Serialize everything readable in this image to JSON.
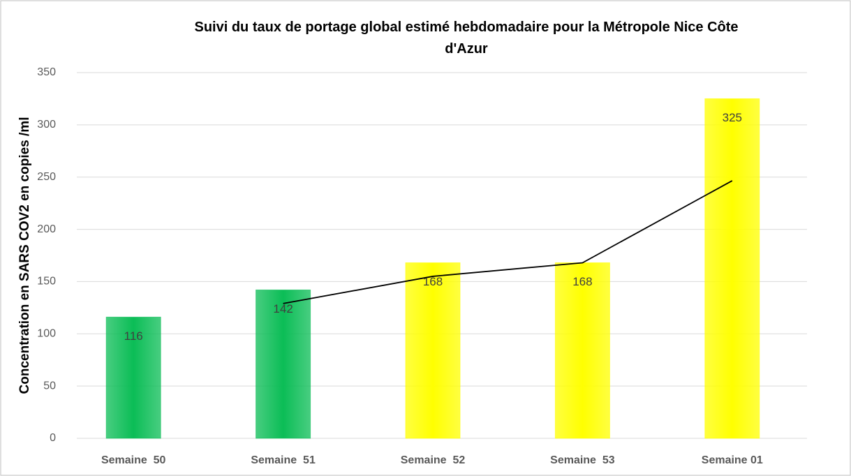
{
  "chart_data": {
    "type": "bar",
    "title": "Suivi du taux de portage global estimé hebdomadaire pour la Métropole Nice Côte d'Azur",
    "y_label": "Concentration en SARS COV2 en copies /ml",
    "categories": [
      "Semaine  50",
      "Semaine  51",
      "Semaine  52",
      "Semaine  53",
      "Semaine 01"
    ],
    "values": [
      116,
      142,
      168,
      168,
      325
    ],
    "colors": [
      "#0bbd56",
      "#0bbd56",
      "#ffff00",
      "#ffff00",
      "#ffff00"
    ],
    "trend": {
      "color": "#000000",
      "values": [
        null,
        129,
        155,
        168,
        246.5
      ]
    },
    "ylim": [
      0,
      350
    ],
    "yticks": [
      0,
      50,
      100,
      150,
      200,
      250,
      300,
      350
    ],
    "grid": true
  }
}
